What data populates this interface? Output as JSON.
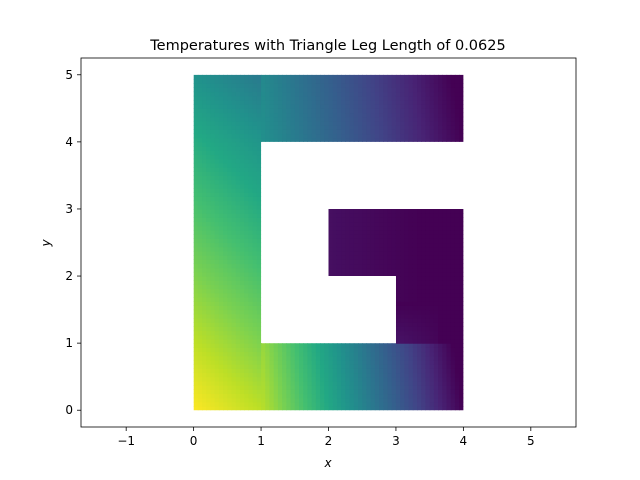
{
  "chart_data": {
    "type": "heatmap",
    "title": "Temperatures with Triangle Leg Length of 0.0625",
    "xlabel": "x",
    "ylabel": "y",
    "xlim": [
      -1.67,
      5.67
    ],
    "ylim": [
      -0.25,
      5.25
    ],
    "x_ticks": [
      -1,
      0,
      1,
      2,
      3,
      4,
      5
    ],
    "y_ticks": [
      0,
      1,
      2,
      3,
      4,
      5
    ],
    "x_tick_labels": [
      "−1",
      "0",
      "1",
      "2",
      "3",
      "4",
      "5"
    ],
    "y_tick_labels": [
      "0",
      "1",
      "2",
      "3",
      "4",
      "5"
    ],
    "grid": false,
    "colormap": "viridis",
    "domain_regions": [
      {
        "x": [
          0,
          1
        ],
        "y": [
          0,
          5
        ]
      },
      {
        "x": [
          1,
          4
        ],
        "y": [
          4,
          5
        ]
      },
      {
        "x": [
          1,
          4
        ],
        "y": [
          0,
          1
        ]
      },
      {
        "x": [
          3,
          4
        ],
        "y": [
          1,
          3
        ]
      },
      {
        "x": [
          2,
          3
        ],
        "y": [
          2,
          3
        ]
      }
    ],
    "hot_corner": [
      0,
      0
    ],
    "cold_edge_x": 4,
    "colors": {
      "max": "#fde725",
      "min": "#440154"
    }
  }
}
